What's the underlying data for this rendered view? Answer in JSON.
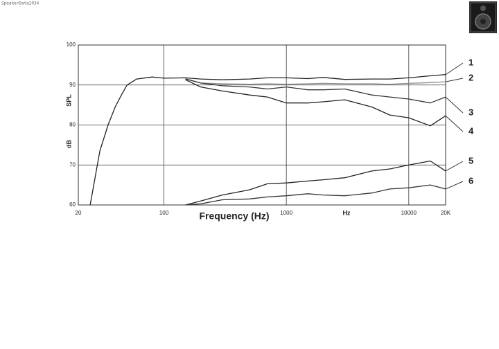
{
  "chart_data": {
    "type": "line",
    "watermark": "SpeakerData2034",
    "xlabel": "Frequency (Hz)",
    "x_unit_label": "Hz",
    "ylabel": "SPL",
    "ylabel_unit": "dB",
    "xscale": "log",
    "grid": true,
    "x": [
      25,
      30,
      35,
      40,
      45,
      50,
      60,
      80,
      100,
      150,
      200,
      300,
      500,
      700,
      1000,
      1500,
      2000,
      3000,
      5000,
      7000,
      10000,
      15000,
      20000
    ],
    "series": [
      {
        "name": "1",
        "color": "#222222",
        "values": [
          60,
          73.5,
          80,
          84.5,
          87.5,
          90,
          91.5,
          92,
          91.7,
          91.8,
          91.5,
          91.3,
          91.5,
          91.8,
          91.8,
          91.6,
          91.9,
          91.4,
          91.5,
          91.5,
          91.8,
          92.3,
          92.6
        ]
      },
      {
        "name": "2",
        "color": "#8a8a8a",
        "values": [
          null,
          null,
          null,
          null,
          null,
          null,
          null,
          null,
          null,
          91.6,
          90.5,
          90.3,
          90.2,
          90.3,
          90.2,
          90.3,
          90.4,
          90.3,
          90.3,
          90.2,
          90.4,
          90.6,
          90.8
        ]
      },
      {
        "name": "3",
        "color": "#333333",
        "values": [
          null,
          null,
          null,
          null,
          null,
          null,
          null,
          null,
          null,
          91.5,
          90.5,
          89.8,
          89.5,
          89.0,
          89.5,
          88.8,
          88.8,
          89.0,
          87.5,
          87.0,
          86.5,
          85.5,
          87.0
        ]
      },
      {
        "name": "4",
        "color": "#222222",
        "values": [
          null,
          null,
          null,
          null,
          null,
          null,
          null,
          null,
          null,
          91.3,
          89.5,
          88.5,
          87.5,
          87.0,
          85.5,
          85.5,
          85.8,
          86.3,
          84.5,
          82.5,
          81.8,
          79.8,
          82.3
        ]
      },
      {
        "name": "5",
        "color": "#222222",
        "values": [
          null,
          null,
          null,
          null,
          null,
          null,
          null,
          null,
          null,
          60,
          61,
          62.5,
          63.8,
          65.3,
          65.5,
          66.0,
          66.3,
          66.8,
          68.5,
          69.0,
          70.0,
          71.0,
          68.5
        ]
      },
      {
        "name": "6",
        "color": "#333333",
        "values": [
          null,
          null,
          null,
          null,
          null,
          null,
          null,
          null,
          null,
          60,
          60.3,
          61.3,
          61.5,
          62.0,
          62.3,
          62.8,
          62.5,
          62.3,
          63.0,
          64.0,
          64.3,
          65.0,
          64.0
        ]
      }
    ],
    "xlim": [
      20,
      20000
    ],
    "xticks": [
      20,
      100,
      1000,
      10000,
      {
        "value": 20000,
        "label": "20K"
      }
    ],
    "ylim": [
      60,
      100
    ],
    "yticks": [
      60,
      70,
      80,
      90,
      100
    ]
  }
}
